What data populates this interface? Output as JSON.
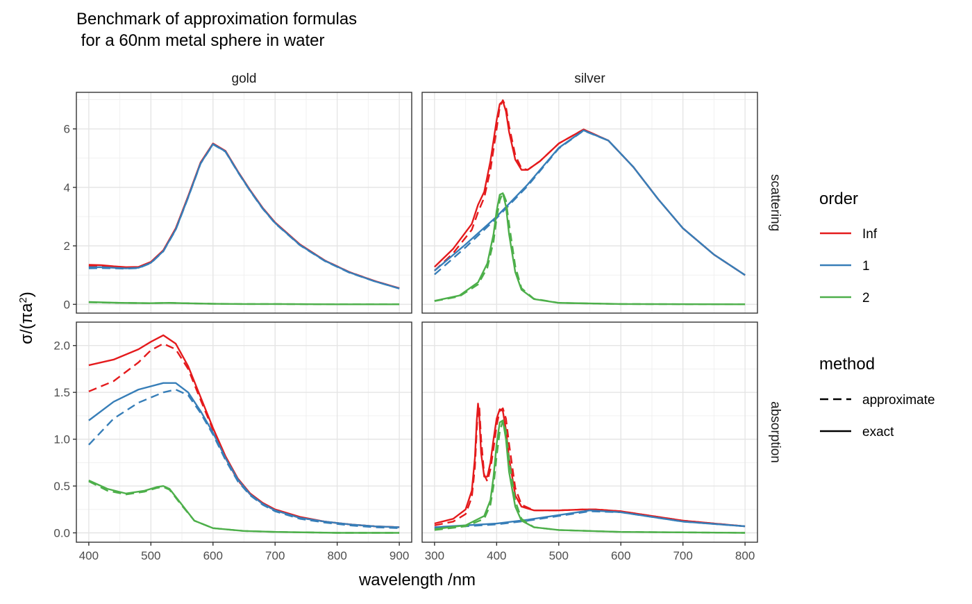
{
  "chart_data": {
    "type": "line",
    "title_lines": [
      "Benchmark of approximation formulas",
      " for a 60nm metal sphere in water"
    ],
    "xlabel": "wavelength /nm",
    "ylabel_parts": {
      "prefix": "σ/(πa",
      "sup": "2",
      "suffix": ")"
    },
    "grid": true,
    "legend_placement": "right",
    "columns": [
      {
        "name": "gold",
        "xlim": [
          380,
          920
        ],
        "xticks": [
          400,
          500,
          600,
          700,
          800,
          900
        ]
      },
      {
        "name": "silver",
        "xlim": [
          280,
          820
        ],
        "xticks": [
          300,
          400,
          500,
          600,
          700,
          800
        ]
      }
    ],
    "rows": [
      {
        "name": "scattering",
        "ylim": [
          -0.3,
          7.25
        ],
        "yticks": [
          0,
          2,
          4,
          6
        ],
        "ytick_labels": [
          "0",
          "2",
          "4",
          "6"
        ]
      },
      {
        "name": "absorption",
        "ylim": [
          -0.1,
          2.25
        ],
        "yticks": [
          0.0,
          0.5,
          1.0,
          1.5,
          2.0
        ],
        "ytick_labels": [
          "0.0",
          "0.5",
          "1.0",
          "1.5",
          "2.0"
        ]
      }
    ],
    "legends": {
      "order": {
        "title": "order",
        "entries": [
          {
            "label": "Inf",
            "color": "#e41a1c"
          },
          {
            "label": "1",
            "color": "#377eb8"
          },
          {
            "label": "2",
            "color": "#4daf4a"
          }
        ]
      },
      "method": {
        "title": "method",
        "entries": [
          {
            "label": "approximate",
            "dash": "dashed"
          },
          {
            "label": "exact",
            "dash": "solid"
          }
        ]
      }
    },
    "series": [
      {
        "column": "gold",
        "row": "scattering",
        "order": "Inf",
        "method": "exact",
        "x": [
          400,
          420,
          440,
          460,
          480,
          500,
          520,
          540,
          560,
          580,
          600,
          620,
          640,
          660,
          680,
          700,
          740,
          780,
          820,
          860,
          900
        ],
        "y": [
          1.35,
          1.34,
          1.3,
          1.27,
          1.28,
          1.45,
          1.85,
          2.6,
          3.7,
          4.85,
          5.5,
          5.25,
          4.55,
          3.9,
          3.3,
          2.8,
          2.05,
          1.5,
          1.1,
          0.8,
          0.55
        ]
      },
      {
        "column": "gold",
        "row": "scattering",
        "order": "Inf",
        "method": "approximate",
        "x": [
          400,
          420,
          440,
          460,
          480,
          500,
          520,
          540,
          560,
          580,
          600,
          620,
          640,
          660,
          680,
          700,
          740,
          780,
          820,
          860,
          900
        ],
        "y": [
          1.3,
          1.3,
          1.28,
          1.26,
          1.27,
          1.44,
          1.84,
          2.58,
          3.68,
          4.83,
          5.48,
          5.24,
          4.54,
          3.89,
          3.29,
          2.79,
          2.04,
          1.5,
          1.1,
          0.8,
          0.55
        ]
      },
      {
        "column": "gold",
        "row": "scattering",
        "order": "1",
        "method": "exact",
        "x": [
          400,
          420,
          440,
          460,
          480,
          500,
          520,
          540,
          560,
          580,
          600,
          620,
          640,
          660,
          680,
          700,
          740,
          780,
          820,
          860,
          900
        ],
        "y": [
          1.27,
          1.27,
          1.25,
          1.23,
          1.25,
          1.42,
          1.82,
          2.56,
          3.66,
          4.82,
          5.48,
          5.23,
          4.53,
          3.88,
          3.28,
          2.78,
          2.03,
          1.49,
          1.09,
          0.79,
          0.54
        ]
      },
      {
        "column": "gold",
        "row": "scattering",
        "order": "1",
        "method": "approximate",
        "x": [
          400,
          420,
          440,
          460,
          480,
          500,
          520,
          540,
          560,
          580,
          600,
          620,
          640,
          660,
          680,
          700,
          740,
          780,
          820,
          860,
          900
        ],
        "y": [
          1.23,
          1.24,
          1.23,
          1.22,
          1.24,
          1.41,
          1.81,
          2.55,
          3.65,
          4.81,
          5.47,
          5.22,
          4.52,
          3.87,
          3.27,
          2.77,
          2.02,
          1.48,
          1.08,
          0.79,
          0.54
        ]
      },
      {
        "column": "gold",
        "row": "scattering",
        "order": "2",
        "method": "exact",
        "x": [
          400,
          450,
          500,
          530,
          550,
          600,
          650,
          700,
          800,
          900
        ],
        "y": [
          0.08,
          0.05,
          0.04,
          0.05,
          0.04,
          0.02,
          0.01,
          0.01,
          0.0,
          0.0
        ]
      },
      {
        "column": "gold",
        "row": "scattering",
        "order": "2",
        "method": "approximate",
        "x": [
          400,
          450,
          500,
          530,
          550,
          600,
          650,
          700,
          800,
          900
        ],
        "y": [
          0.07,
          0.05,
          0.04,
          0.05,
          0.04,
          0.02,
          0.01,
          0.01,
          0.0,
          0.0
        ]
      },
      {
        "column": "silver",
        "row": "scattering",
        "order": "Inf",
        "method": "exact",
        "x": [
          300,
          330,
          360,
          370,
          380,
          390,
          400,
          405,
          410,
          415,
          420,
          430,
          440,
          450,
          470,
          500,
          540,
          580,
          620,
          660,
          700,
          750,
          800
        ],
        "y": [
          1.28,
          1.9,
          2.75,
          3.4,
          3.85,
          4.9,
          6.3,
          6.85,
          6.95,
          6.6,
          5.9,
          4.95,
          4.6,
          4.6,
          4.9,
          5.5,
          5.98,
          5.6,
          4.7,
          3.6,
          2.6,
          1.7,
          1.0
        ]
      },
      {
        "column": "silver",
        "row": "scattering",
        "order": "Inf",
        "method": "approximate",
        "x": [
          300,
          330,
          360,
          370,
          380,
          390,
          400,
          405,
          410,
          415,
          420,
          430,
          440,
          450,
          470,
          500,
          540,
          580,
          620,
          660,
          700,
          750,
          800
        ],
        "y": [
          1.15,
          1.75,
          2.55,
          3.15,
          3.65,
          4.6,
          6.0,
          6.75,
          6.98,
          6.75,
          6.1,
          5.1,
          4.65,
          4.6,
          4.9,
          5.5,
          5.98,
          5.6,
          4.7,
          3.6,
          2.6,
          1.7,
          1.0
        ]
      },
      {
        "column": "silver",
        "row": "scattering",
        "order": "1",
        "method": "exact",
        "x": [
          300,
          350,
          400,
          450,
          500,
          540,
          580,
          620,
          660,
          700,
          750,
          800
        ],
        "y": [
          1.15,
          2.05,
          3.0,
          4.1,
          5.35,
          5.95,
          5.6,
          4.7,
          3.6,
          2.6,
          1.7,
          1.0
        ]
      },
      {
        "column": "silver",
        "row": "scattering",
        "order": "1",
        "method": "approximate",
        "x": [
          300,
          350,
          400,
          450,
          500,
          540,
          580,
          620,
          660,
          700,
          750,
          800
        ],
        "y": [
          1.02,
          1.95,
          2.95,
          4.05,
          5.33,
          5.94,
          5.6,
          4.7,
          3.6,
          2.6,
          1.7,
          1.0
        ]
      },
      {
        "column": "silver",
        "row": "scattering",
        "order": "2",
        "method": "exact",
        "x": [
          300,
          340,
          370,
          385,
          395,
          400,
          405,
          410,
          415,
          420,
          430,
          440,
          460,
          500,
          600,
          800
        ],
        "y": [
          0.12,
          0.3,
          0.75,
          1.4,
          2.4,
          3.2,
          3.75,
          3.8,
          3.35,
          2.4,
          1.1,
          0.5,
          0.18,
          0.05,
          0.01,
          0.0
        ]
      },
      {
        "column": "silver",
        "row": "scattering",
        "order": "2",
        "method": "approximate",
        "x": [
          300,
          340,
          370,
          385,
          395,
          400,
          405,
          410,
          415,
          420,
          430,
          440,
          460,
          500,
          600,
          800
        ],
        "y": [
          0.11,
          0.27,
          0.68,
          1.25,
          2.15,
          2.95,
          3.55,
          3.82,
          3.55,
          2.75,
          1.3,
          0.55,
          0.19,
          0.05,
          0.01,
          0.0
        ]
      },
      {
        "column": "gold",
        "row": "absorption",
        "order": "Inf",
        "method": "exact",
        "x": [
          400,
          440,
          480,
          500,
          520,
          540,
          560,
          580,
          600,
          620,
          640,
          660,
          680,
          700,
          740,
          780,
          820,
          860,
          900
        ],
        "y": [
          1.79,
          1.85,
          1.96,
          2.04,
          2.11,
          2.02,
          1.78,
          1.45,
          1.12,
          0.82,
          0.58,
          0.42,
          0.32,
          0.25,
          0.17,
          0.12,
          0.09,
          0.07,
          0.06
        ]
      },
      {
        "column": "gold",
        "row": "absorption",
        "order": "Inf",
        "method": "approximate",
        "x": [
          400,
          440,
          480,
          500,
          520,
          540,
          560,
          580,
          600,
          620,
          640,
          660,
          680,
          700,
          740,
          780,
          820,
          860,
          900
        ],
        "y": [
          1.51,
          1.62,
          1.82,
          1.95,
          2.02,
          1.96,
          1.75,
          1.42,
          1.1,
          0.8,
          0.56,
          0.41,
          0.31,
          0.24,
          0.16,
          0.12,
          0.09,
          0.07,
          0.06
        ]
      },
      {
        "column": "gold",
        "row": "absorption",
        "order": "1",
        "method": "exact",
        "x": [
          400,
          440,
          480,
          520,
          540,
          560,
          580,
          600,
          620,
          640,
          660,
          680,
          700,
          740,
          780,
          820,
          860,
          900
        ],
        "y": [
          1.2,
          1.4,
          1.53,
          1.6,
          1.6,
          1.5,
          1.3,
          1.07,
          0.8,
          0.57,
          0.41,
          0.31,
          0.24,
          0.16,
          0.12,
          0.09,
          0.07,
          0.06
        ]
      },
      {
        "column": "gold",
        "row": "absorption",
        "order": "1",
        "method": "approximate",
        "x": [
          400,
          440,
          480,
          520,
          540,
          560,
          580,
          600,
          620,
          640,
          660,
          680,
          700,
          740,
          780,
          820,
          860,
          900
        ],
        "y": [
          0.94,
          1.22,
          1.39,
          1.5,
          1.53,
          1.47,
          1.28,
          1.05,
          0.78,
          0.55,
          0.4,
          0.3,
          0.23,
          0.15,
          0.11,
          0.08,
          0.06,
          0.05
        ]
      },
      {
        "column": "gold",
        "row": "absorption",
        "order": "2",
        "method": "exact",
        "x": [
          400,
          430,
          460,
          490,
          510,
          520,
          530,
          550,
          570,
          600,
          650,
          700,
          800,
          900
        ],
        "y": [
          0.56,
          0.47,
          0.42,
          0.45,
          0.49,
          0.5,
          0.47,
          0.3,
          0.13,
          0.05,
          0.02,
          0.01,
          0.0,
          0.0
        ]
      },
      {
        "column": "gold",
        "row": "absorption",
        "order": "2",
        "method": "approximate",
        "x": [
          400,
          430,
          460,
          490,
          510,
          520,
          530,
          550,
          570,
          600,
          650,
          700,
          800,
          900
        ],
        "y": [
          0.55,
          0.45,
          0.41,
          0.44,
          0.48,
          0.49,
          0.46,
          0.29,
          0.13,
          0.05,
          0.02,
          0.01,
          0.0,
          0.0
        ]
      },
      {
        "column": "silver",
        "row": "absorption",
        "order": "Inf",
        "method": "exact",
        "x": [
          300,
          330,
          350,
          360,
          365,
          368,
          370,
          372,
          375,
          380,
          385,
          390,
          395,
          400,
          405,
          410,
          415,
          420,
          430,
          440,
          460,
          500,
          540,
          560,
          600,
          650,
          700,
          750,
          800
        ],
        "y": [
          0.1,
          0.15,
          0.25,
          0.45,
          0.8,
          1.2,
          1.38,
          1.25,
          0.85,
          0.6,
          0.6,
          0.75,
          1.0,
          1.22,
          1.32,
          1.3,
          1.1,
          0.8,
          0.4,
          0.28,
          0.24,
          0.24,
          0.25,
          0.25,
          0.23,
          0.18,
          0.13,
          0.1,
          0.07
        ]
      },
      {
        "column": "silver",
        "row": "absorption",
        "order": "Inf",
        "method": "approximate",
        "x": [
          300,
          330,
          350,
          360,
          365,
          368,
          370,
          372,
          375,
          380,
          385,
          390,
          395,
          400,
          405,
          410,
          415,
          420,
          430,
          440,
          460,
          500,
          540,
          560,
          600,
          650,
          700,
          750,
          800
        ],
        "y": [
          0.08,
          0.12,
          0.2,
          0.38,
          0.7,
          1.1,
          1.35,
          1.35,
          1.0,
          0.62,
          0.55,
          0.68,
          0.9,
          1.15,
          1.3,
          1.33,
          1.22,
          0.95,
          0.48,
          0.3,
          0.24,
          0.24,
          0.25,
          0.25,
          0.23,
          0.18,
          0.13,
          0.1,
          0.07
        ]
      },
      {
        "column": "silver",
        "row": "absorption",
        "order": "1",
        "method": "exact",
        "x": [
          300,
          400,
          450,
          500,
          550,
          600,
          650,
          700,
          800
        ],
        "y": [
          0.06,
          0.1,
          0.14,
          0.19,
          0.24,
          0.22,
          0.17,
          0.12,
          0.07
        ]
      },
      {
        "column": "silver",
        "row": "absorption",
        "order": "1",
        "method": "approximate",
        "x": [
          300,
          400,
          450,
          500,
          550,
          600,
          650,
          700,
          800
        ],
        "y": [
          0.05,
          0.09,
          0.13,
          0.18,
          0.23,
          0.22,
          0.17,
          0.12,
          0.07
        ]
      },
      {
        "column": "silver",
        "row": "absorption",
        "order": "2",
        "method": "exact",
        "x": [
          300,
          350,
          380,
          390,
          395,
          400,
          405,
          410,
          415,
          420,
          430,
          440,
          460,
          500,
          600,
          800
        ],
        "y": [
          0.04,
          0.08,
          0.18,
          0.35,
          0.6,
          0.95,
          1.18,
          1.2,
          1.0,
          0.65,
          0.28,
          0.13,
          0.06,
          0.03,
          0.01,
          0.0
        ]
      },
      {
        "column": "silver",
        "row": "absorption",
        "order": "2",
        "method": "approximate",
        "x": [
          300,
          350,
          380,
          390,
          395,
          400,
          405,
          410,
          415,
          420,
          430,
          440,
          460,
          500,
          600,
          800
        ],
        "y": [
          0.03,
          0.07,
          0.15,
          0.3,
          0.5,
          0.82,
          1.08,
          1.2,
          1.08,
          0.78,
          0.34,
          0.15,
          0.06,
          0.03,
          0.01,
          0.0
        ]
      }
    ]
  }
}
